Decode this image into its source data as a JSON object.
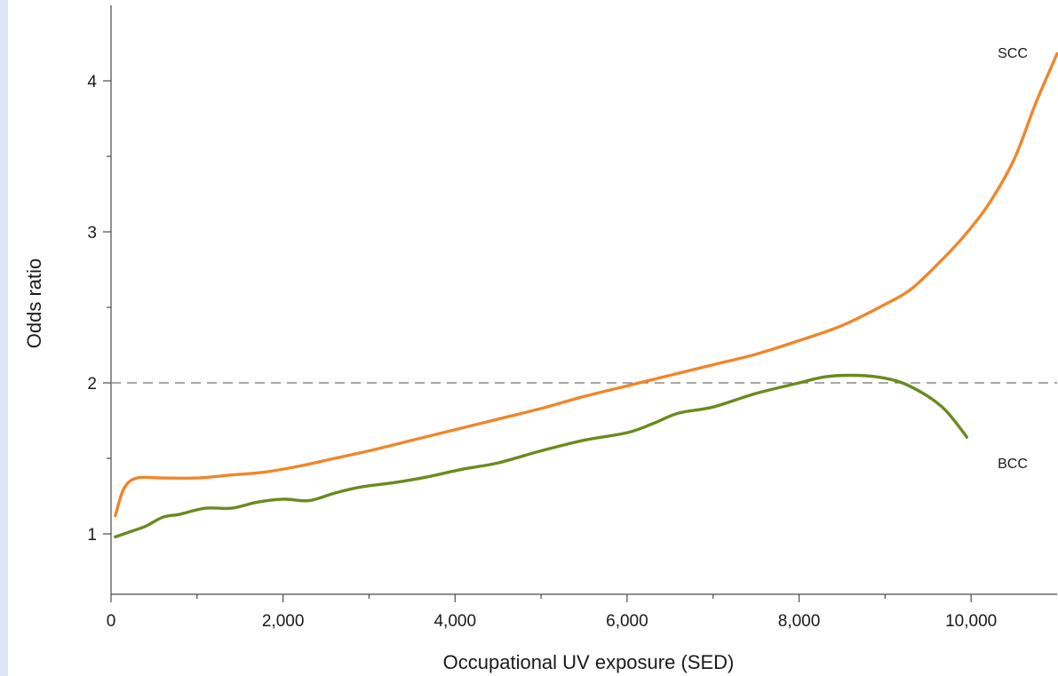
{
  "colors": {
    "side_band": "#dde6f4",
    "scc": "#f0862a",
    "bcc": "#6b8a1e"
  },
  "chart_data": {
    "type": "line",
    "title": "",
    "xlabel": "Occupational UV exposure (SED)",
    "ylabel": "Odds ratio",
    "xlim": [
      0,
      11000
    ],
    "ylim": [
      0.6,
      4.5
    ],
    "x_ticks": [
      {
        "value": 0,
        "label": "0"
      },
      {
        "value": 2000,
        "label": "2,000"
      },
      {
        "value": 4000,
        "label": "4,000"
      },
      {
        "value": 6000,
        "label": "6,000"
      },
      {
        "value": 8000,
        "label": "8,000"
      },
      {
        "value": 10000,
        "label": "10,000"
      }
    ],
    "x_minor_ticks": [
      1000,
      3000,
      5000,
      7000,
      9000
    ],
    "y_ticks": [
      {
        "value": 1,
        "label": "1"
      },
      {
        "value": 2,
        "label": "2"
      },
      {
        "value": 3,
        "label": "3"
      },
      {
        "value": 4,
        "label": "4"
      }
    ],
    "y_minor_ticks": [
      1.5,
      2.5,
      3.5
    ],
    "reference_line": {
      "y": 2,
      "style": "dashed"
    },
    "grid": false,
    "series": [
      {
        "name": "SCC",
        "color_key": "scc",
        "points": [
          [
            50,
            1.12
          ],
          [
            150,
            1.3
          ],
          [
            300,
            1.37
          ],
          [
            600,
            1.37
          ],
          [
            1000,
            1.37
          ],
          [
            1400,
            1.39
          ],
          [
            1800,
            1.41
          ],
          [
            2200,
            1.45
          ],
          [
            2600,
            1.5
          ],
          [
            3000,
            1.55
          ],
          [
            3500,
            1.62
          ],
          [
            4000,
            1.69
          ],
          [
            4500,
            1.76
          ],
          [
            5000,
            1.83
          ],
          [
            5500,
            1.91
          ],
          [
            6000,
            1.98
          ],
          [
            6500,
            2.05
          ],
          [
            7000,
            2.12
          ],
          [
            7500,
            2.19
          ],
          [
            8000,
            2.28
          ],
          [
            8500,
            2.38
          ],
          [
            9000,
            2.52
          ],
          [
            9300,
            2.62
          ],
          [
            9600,
            2.78
          ],
          [
            9900,
            2.96
          ],
          [
            10200,
            3.18
          ],
          [
            10500,
            3.48
          ],
          [
            10750,
            3.85
          ],
          [
            11000,
            4.18
          ]
        ]
      },
      {
        "name": "BCC",
        "color_key": "bcc",
        "points": [
          [
            50,
            0.98
          ],
          [
            200,
            1.01
          ],
          [
            400,
            1.05
          ],
          [
            600,
            1.11
          ],
          [
            800,
            1.13
          ],
          [
            1100,
            1.17
          ],
          [
            1400,
            1.17
          ],
          [
            1700,
            1.21
          ],
          [
            2000,
            1.23
          ],
          [
            2300,
            1.22
          ],
          [
            2600,
            1.27
          ],
          [
            2900,
            1.31
          ],
          [
            3300,
            1.34
          ],
          [
            3700,
            1.38
          ],
          [
            4100,
            1.43
          ],
          [
            4500,
            1.47
          ],
          [
            5000,
            1.55
          ],
          [
            5500,
            1.62
          ],
          [
            6000,
            1.67
          ],
          [
            6300,
            1.73
          ],
          [
            6600,
            1.8
          ],
          [
            7000,
            1.84
          ],
          [
            7500,
            1.93
          ],
          [
            8000,
            2.0
          ],
          [
            8300,
            2.04
          ],
          [
            8600,
            2.05
          ],
          [
            8900,
            2.04
          ],
          [
            9200,
            2.0
          ],
          [
            9500,
            1.91
          ],
          [
            9700,
            1.82
          ],
          [
            9900,
            1.68
          ],
          [
            9950,
            1.64
          ]
        ]
      }
    ]
  }
}
